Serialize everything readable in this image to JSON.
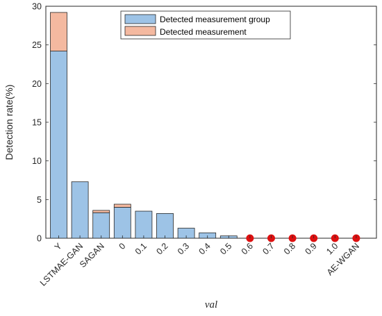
{
  "chart_data": {
    "type": "bar",
    "stacked": true,
    "categories": [
      "Y",
      "LSTMAE-GAN",
      "SAGAN",
      "0",
      "0.1",
      "0.2",
      "0.3",
      "0.4",
      "0.5",
      "0.6",
      "0.7",
      "0.8",
      "0.9",
      "1.0",
      "AE-WGAN"
    ],
    "series": [
      {
        "name": "Detected measurement group",
        "color": "#9dc3e6",
        "values": [
          24.2,
          7.3,
          3.3,
          4.0,
          3.5,
          3.2,
          1.3,
          0.7,
          0.3,
          0,
          0,
          0,
          0,
          0,
          0
        ]
      },
      {
        "name": "Detected measurement",
        "color": "#f4b9a0",
        "values": [
          5.0,
          0,
          0.3,
          0.4,
          0,
          0,
          0,
          0,
          0,
          0,
          0,
          0,
          0,
          0,
          0
        ]
      }
    ],
    "markers": {
      "color": "#dd1010",
      "categories": [
        "0.6",
        "0.7",
        "0.8",
        "0.9",
        "1.0",
        "AE-WGAN"
      ],
      "values": [
        0,
        0,
        0,
        0,
        0,
        0
      ]
    },
    "xlabel": "val",
    "ylabel": "Detection rate(%)",
    "ylim": [
      0,
      30
    ],
    "yticks": [
      "0",
      "5",
      "10",
      "15",
      "20",
      "25",
      "30"
    ],
    "grid": false,
    "legend_position": "top-center"
  }
}
